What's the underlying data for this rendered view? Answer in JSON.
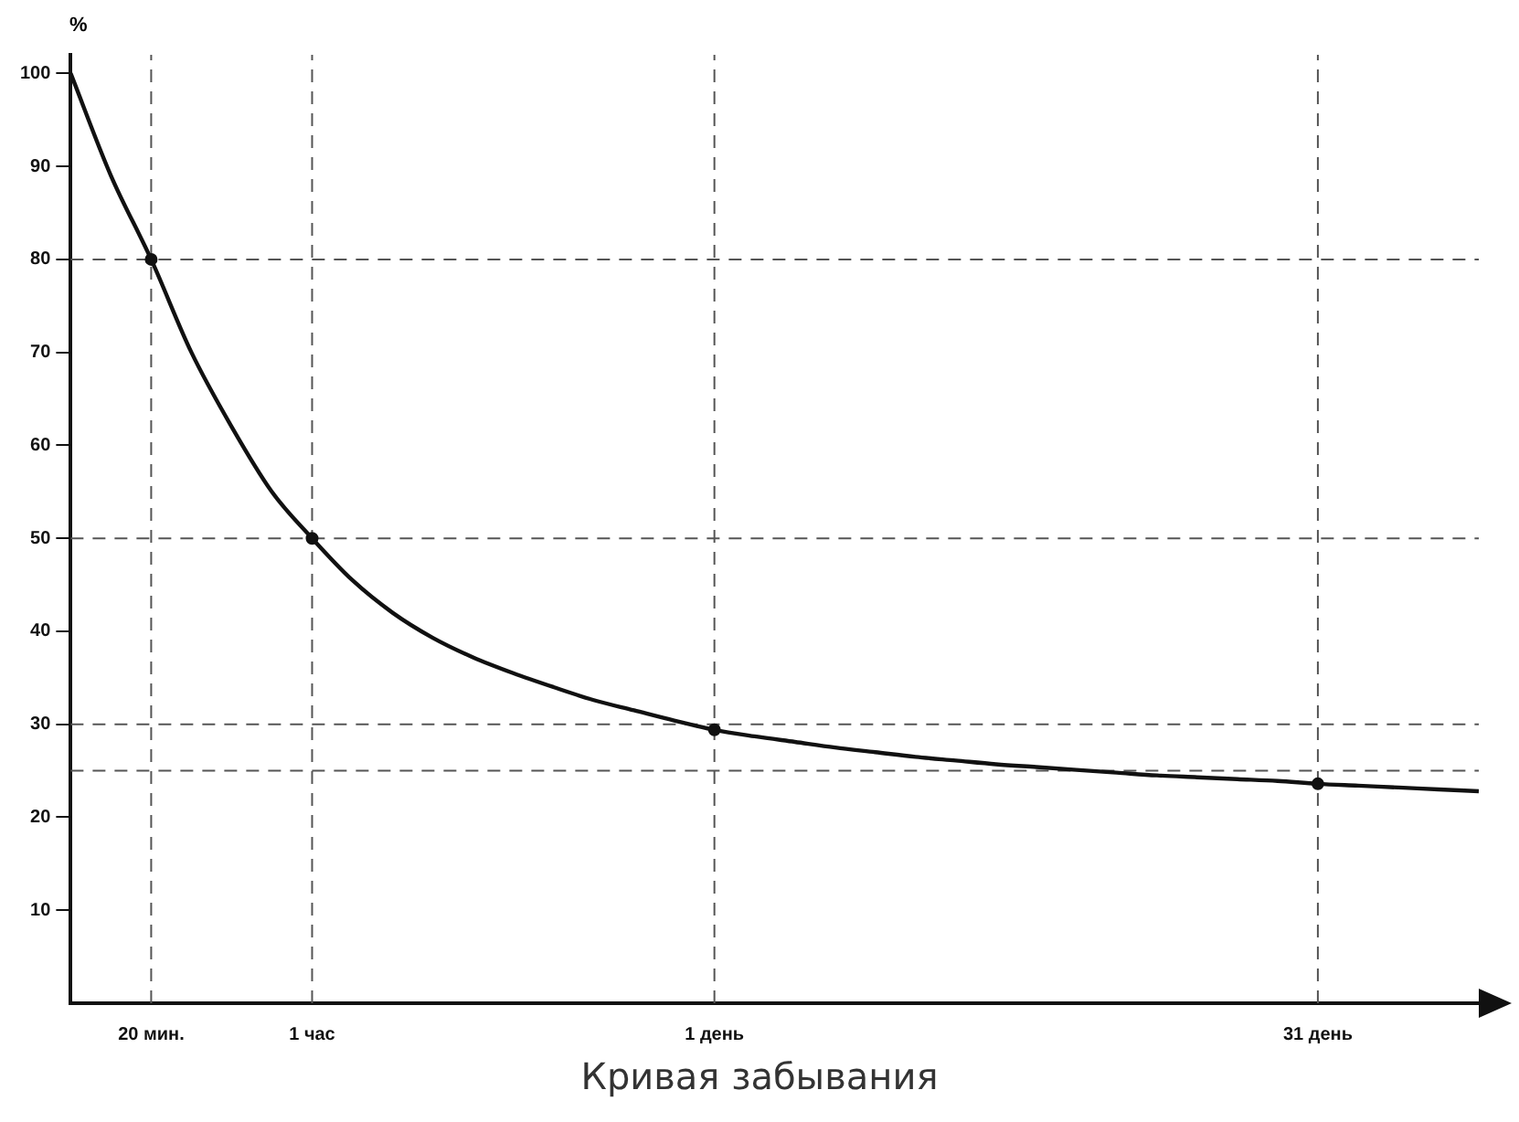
{
  "chart_data": {
    "type": "line",
    "ylabel": "%",
    "ylim": [
      0,
      102
    ],
    "categories": [
      null,
      null,
      "20 мин.",
      null,
      null,
      null,
      "1 час",
      null,
      null,
      null,
      null,
      null,
      null,
      null,
      null,
      null,
      "1 день",
      null,
      null,
      null,
      null,
      null,
      null,
      null,
      null,
      null,
      null,
      null,
      null,
      null,
      null,
      "31 день",
      null,
      null,
      null,
      null
    ],
    "yticks": [
      10,
      20,
      30,
      40,
      50,
      60,
      70,
      80,
      90,
      100
    ],
    "series": [
      {
        "color": "#111111",
        "values": [
          100,
          89,
          80,
          70,
          62,
          55,
          50,
          45.5,
          42,
          39.3,
          37.2,
          35.5,
          34,
          32.6,
          31.5,
          30.4,
          29.4,
          28.7,
          28.1,
          27.5,
          27,
          26.5,
          26.1,
          25.7,
          25.4,
          25.1,
          24.8,
          24.5,
          24.3,
          24.1,
          23.9,
          23.6,
          23.4,
          23.2,
          23,
          22.8
        ],
        "marker": "none"
      },
      {
        "type": "scatter",
        "color": "#111111",
        "values": [
          null,
          null,
          80,
          null,
          null,
          null,
          50,
          null,
          null,
          null,
          null,
          null,
          null,
          null,
          null,
          null,
          29.4,
          null,
          null,
          null,
          null,
          null,
          null,
          null,
          null,
          null,
          null,
          null,
          null,
          null,
          null,
          23.6,
          null,
          null,
          null,
          null
        ],
        "marker": "circle"
      }
    ],
    "ref_lines": [
      {
        "axis": "y",
        "value": 80,
        "line_style": "dashed"
      },
      {
        "axis": "y",
        "value": 50,
        "line_style": "dashed"
      },
      {
        "axis": "y",
        "value": 30,
        "line_style": "dashed"
      },
      {
        "axis": "y",
        "value": 25,
        "line_style": "dashed"
      },
      {
        "axis": "x",
        "value": "20 мин.",
        "line_style": "dashed"
      },
      {
        "axis": "x",
        "value": "1 час",
        "line_style": "dashed"
      },
      {
        "axis": "x",
        "value": "1 день",
        "line_style": "dashed"
      },
      {
        "axis": "x",
        "value": "31 день",
        "line_style": "dashed"
      }
    ],
    "grid": false,
    "legend": false,
    "annotations": [
      "Кривая забывания"
    ]
  }
}
